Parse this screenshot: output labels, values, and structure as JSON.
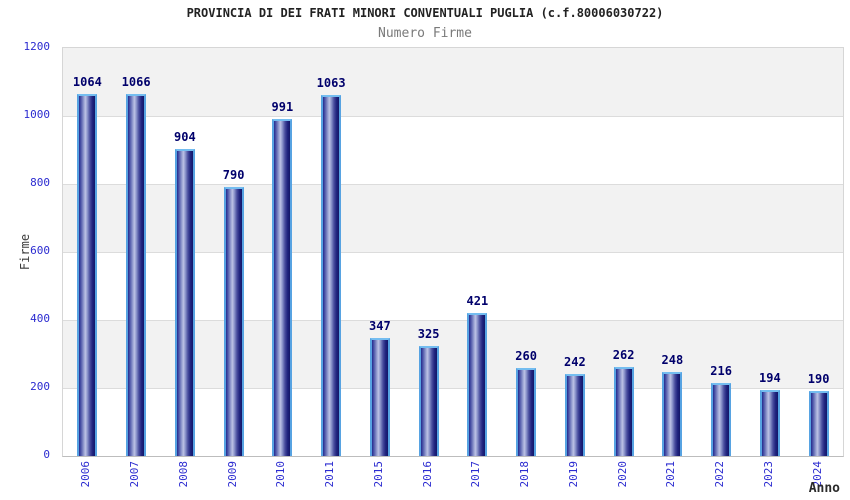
{
  "chart_data": {
    "type": "bar",
    "title": "PROVINCIA DI DEI FRATI MINORI CONVENTUALI PUGLIA (c.f.80006030722)",
    "subtitle": "Numero Firme",
    "xlabel": "Anno",
    "ylabel": "Firme",
    "categories": [
      "2006",
      "2007",
      "2008",
      "2009",
      "2010",
      "2011",
      "2015",
      "2016",
      "2017",
      "2018",
      "2019",
      "2020",
      "2021",
      "2022",
      "2023",
      "2024"
    ],
    "values": [
      1064,
      1066,
      904,
      790,
      991,
      1063,
      347,
      325,
      421,
      260,
      242,
      262,
      248,
      216,
      194,
      190
    ],
    "ylim": [
      0,
      1200
    ],
    "yticks": [
      0,
      200,
      400,
      600,
      800,
      1000,
      1200
    ],
    "grid": "horizontal-bands",
    "legend": "none",
    "value_labels_shown": true,
    "colors": {
      "bar_border": "#57a3e2",
      "bar_edge": "#20247f",
      "bar_highlight": "#bdc3e5",
      "value_label": "#00006b",
      "tick_label": "#2b2bd0",
      "band_gray": "#f2f2f2",
      "band_white": "#ffffff",
      "gridline": "#dcdcdc",
      "title": "#222222",
      "subtitle": "#7a7a7a",
      "axis_title": "#3c3c3c"
    }
  }
}
